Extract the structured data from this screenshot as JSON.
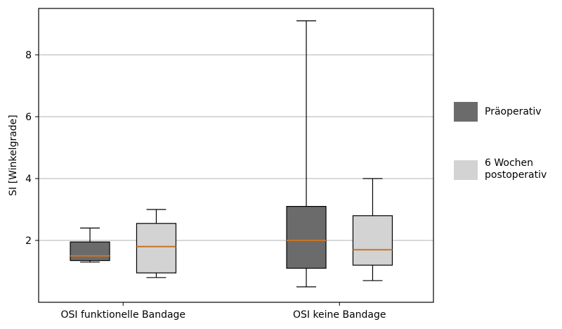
{
  "chart_data": {
    "type": "boxplot",
    "ylabel": "SI [Winkelgrade]",
    "ylim": [
      0,
      9.5
    ],
    "yticks": [
      2,
      4,
      6,
      8
    ],
    "grid": "horizontal",
    "categories": [
      "OSI funktionelle Bandage",
      "OSI keine Bandage"
    ],
    "legend_position": "right",
    "series": [
      {
        "name": "Präoperativ",
        "color": "#6b6b6b",
        "boxes": [
          {
            "whisker_low": 1.3,
            "q1": 1.35,
            "median": 1.5,
            "q3": 1.95,
            "whisker_high": 2.4
          },
          {
            "whisker_low": 0.5,
            "q1": 1.1,
            "median": 2.0,
            "q3": 3.1,
            "whisker_high": 9.1
          }
        ]
      },
      {
        "name_lines": [
          "6 Wochen",
          "postoperativ"
        ],
        "color": "#d3d3d3",
        "boxes": [
          {
            "whisker_low": 0.8,
            "q1": 0.95,
            "median": 1.8,
            "q3": 2.55,
            "whisker_high": 3.0
          },
          {
            "whisker_low": 0.7,
            "q1": 1.2,
            "median": 1.7,
            "q3": 2.8,
            "whisker_high": 4.0
          }
        ]
      }
    ],
    "median_color": "#c8742a"
  }
}
